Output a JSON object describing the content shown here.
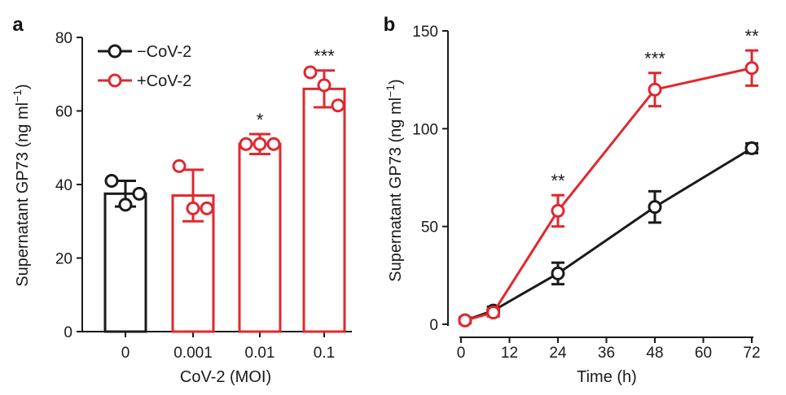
{
  "colors": {
    "control": "#1a1a1a",
    "infected": "#e0282e"
  },
  "chart_data": [
    {
      "panel_label": "a",
      "type": "bar",
      "ylabel_main": "Supernatant GP73 (ng ml",
      "ylabel_sup": "−1",
      "ylabel_end": ")",
      "xlabel": "CoV-2 (MOI)",
      "ylim": [
        0,
        80
      ],
      "yticks": [
        0,
        20,
        40,
        60,
        80
      ],
      "categories": [
        "0",
        "0.001",
        "0.01",
        "0.1"
      ],
      "bars": [
        {
          "category": "0",
          "series": "−CoV-2",
          "mean": 37.5,
          "error": 3.5,
          "points": [
            41,
            34.5,
            37.5
          ],
          "stars": ""
        },
        {
          "category": "0.001",
          "series": "+CoV-2",
          "mean": 37,
          "error": 7,
          "points": [
            45,
            33.5,
            33.5
          ],
          "stars": ""
        },
        {
          "category": "0.01",
          "series": "+CoV-2",
          "mean": 51,
          "error": 2.7,
          "points": [
            51,
            51,
            51
          ],
          "stars": "*"
        },
        {
          "category": "0.1",
          "series": "+CoV-2",
          "mean": 66,
          "error": 5,
          "points": [
            70.5,
            67,
            61.5
          ],
          "stars": "***"
        }
      ],
      "legend": [
        {
          "label": "−CoV-2",
          "series": "control"
        },
        {
          "label": "+CoV-2",
          "series": "infected"
        }
      ],
      "legend_position": "top-left"
    },
    {
      "panel_label": "b",
      "type": "line",
      "ylabel_main": "Supernatant GP73 (ng ml",
      "ylabel_sup": "−1",
      "ylabel_end": ")",
      "xlabel": "Time (h)",
      "xlim": [
        0,
        72
      ],
      "ylim": [
        0,
        150
      ],
      "xticks": [
        0,
        12,
        24,
        36,
        48,
        60,
        72
      ],
      "yticks": [
        0,
        50,
        100,
        150
      ],
      "series": [
        {
          "name": "−CoV-2",
          "color_key": "control",
          "x": [
            1,
            8,
            24,
            48,
            72
          ],
          "y": [
            2,
            7,
            26,
            60,
            90
          ],
          "err": [
            1.5,
            2,
            5.5,
            8,
            2.5
          ]
        },
        {
          "name": "+CoV-2",
          "color_key": "infected",
          "x": [
            1,
            8,
            24,
            48,
            72
          ],
          "y": [
            2,
            6,
            58,
            120,
            131
          ],
          "err": [
            1.5,
            2,
            8,
            8.5,
            9
          ]
        }
      ],
      "annotations": [
        {
          "x": 24,
          "y_top": 66,
          "text": "**"
        },
        {
          "x": 48,
          "y_top": 128.5,
          "text": "***"
        },
        {
          "x": 72,
          "y_top": 140,
          "text": "**"
        }
      ]
    }
  ]
}
